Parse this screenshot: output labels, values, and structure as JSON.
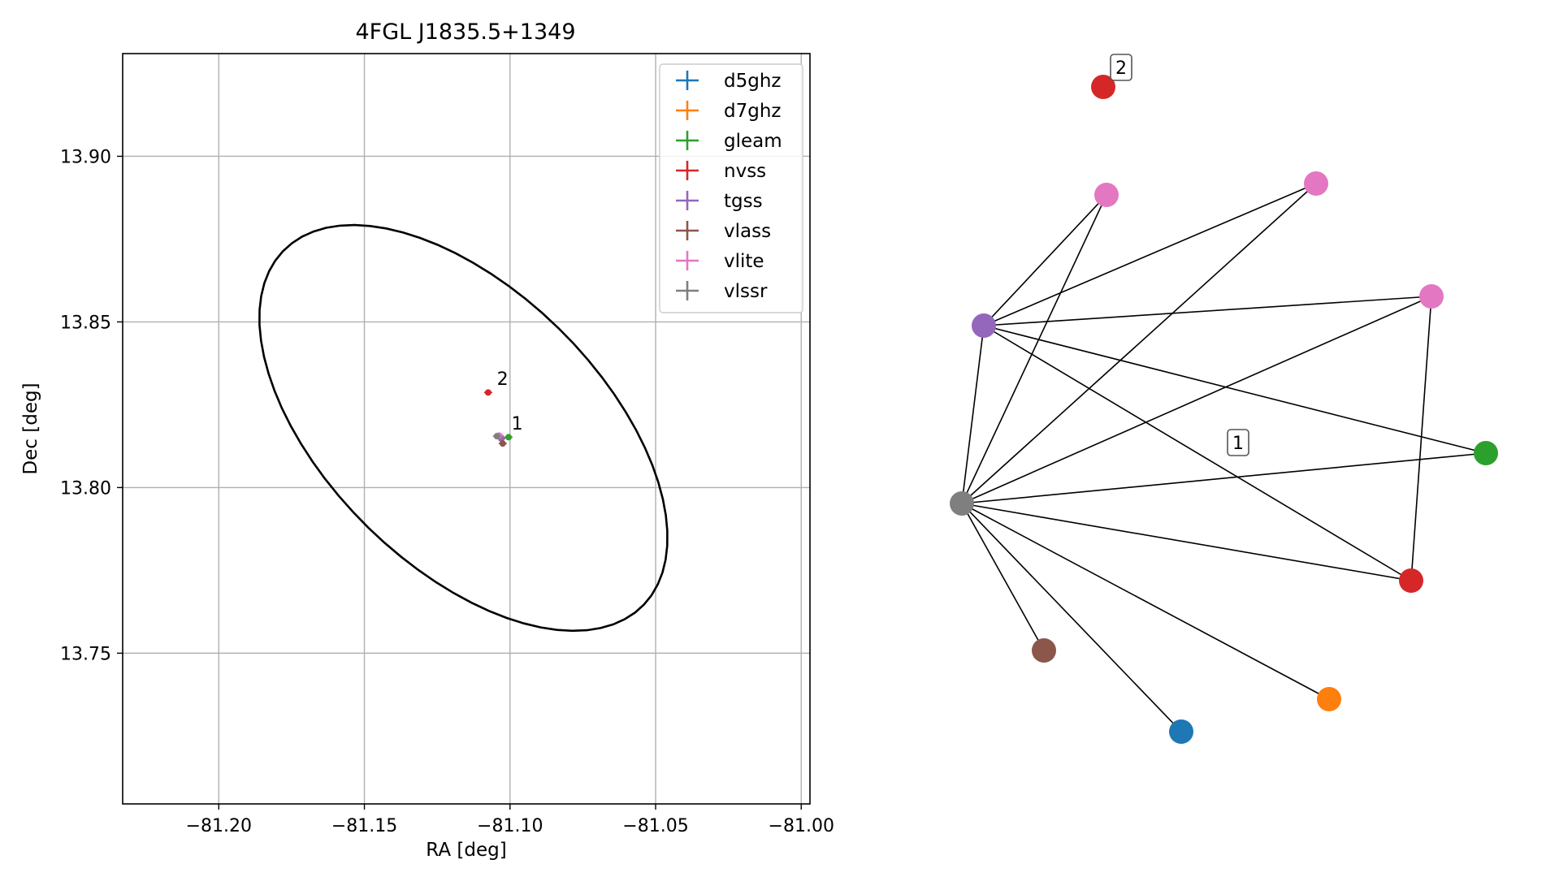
{
  "chart_data": [
    {
      "type": "scatter",
      "title": "4FGL J1835.5+1349",
      "xlabel": "RA [deg]",
      "ylabel": "Dec [deg]",
      "xlim": [
        -81.233,
        -80.997
      ],
      "ylim": [
        13.7045,
        13.931
      ],
      "xticks": [
        -81.2,
        -81.15,
        -81.1,
        -81.05,
        -81.0
      ],
      "xtick_labels": [
        "−81.20",
        "−81.15",
        "−81.10",
        "−81.05",
        "−81.00"
      ],
      "yticks": [
        13.75,
        13.8,
        13.85,
        13.9
      ],
      "ytick_labels": [
        "13.75",
        "13.80",
        "13.85",
        "13.90"
      ],
      "grid": true,
      "legend_position": "top-right",
      "ellipse": {
        "center": [
          -81.116,
          13.818
        ],
        "semi_major": 0.082,
        "semi_minor": 0.044,
        "angle_deg": -38,
        "color": "#000000"
      },
      "series": [
        {
          "name": "d5ghz",
          "color": "#1f77b4",
          "points": [
            [
              -81.1035,
              13.8155
            ]
          ]
        },
        {
          "name": "d7ghz",
          "color": "#ff7f0e",
          "points": [
            [
              -81.1035,
              13.8155
            ]
          ]
        },
        {
          "name": "gleam",
          "color": "#2ca02c",
          "points": [
            [
              -81.1005,
              13.8152
            ]
          ]
        },
        {
          "name": "nvss",
          "color": "#d62728",
          "points": [
            [
              -81.1075,
              13.8287
            ],
            [
              -81.103,
              13.8148
            ]
          ]
        },
        {
          "name": "tgss",
          "color": "#9467bd",
          "points": [
            [
              -81.103,
              13.815
            ]
          ]
        },
        {
          "name": "vlass",
          "color": "#8c564b",
          "points": [
            [
              -81.1025,
              13.8133
            ]
          ]
        },
        {
          "name": "vlite",
          "color": "#e377c2",
          "points": [
            [
              -81.1038,
              13.8157
            ]
          ]
        },
        {
          "name": "vlssr",
          "color": "#7f7f7f",
          "points": [
            [
              -81.1045,
              13.8155
            ]
          ]
        }
      ],
      "annotations": [
        {
          "text": "1",
          "x": -81.0995,
          "y": 13.8175
        },
        {
          "text": "2",
          "x": -81.1045,
          "y": 13.831
        }
      ]
    },
    {
      "type": "network",
      "nodes": [
        {
          "id": "n_red_top",
          "color": "#d62728"
        },
        {
          "id": "n_pink_1",
          "color": "#e377c2"
        },
        {
          "id": "n_pink_2",
          "color": "#e377c2"
        },
        {
          "id": "n_pink_3",
          "color": "#e377c2"
        },
        {
          "id": "n_purple",
          "color": "#9467bd"
        },
        {
          "id": "n_green",
          "color": "#2ca02c"
        },
        {
          "id": "n_gray",
          "color": "#7f7f7f"
        },
        {
          "id": "n_red",
          "color": "#d62728"
        },
        {
          "id": "n_brown",
          "color": "#8c564b"
        },
        {
          "id": "n_orange",
          "color": "#ff7f0e"
        },
        {
          "id": "n_blue",
          "color": "#1f77b4"
        }
      ],
      "edges": [
        [
          "n_purple",
          "n_pink_1"
        ],
        [
          "n_purple",
          "n_pink_2"
        ],
        [
          "n_purple",
          "n_pink_3"
        ],
        [
          "n_purple",
          "n_green"
        ],
        [
          "n_purple",
          "n_red"
        ],
        [
          "n_purple",
          "n_gray"
        ],
        [
          "n_gray",
          "n_pink_1"
        ],
        [
          "n_gray",
          "n_pink_2"
        ],
        [
          "n_gray",
          "n_pink_3"
        ],
        [
          "n_gray",
          "n_green"
        ],
        [
          "n_gray",
          "n_red"
        ],
        [
          "n_gray",
          "n_brown"
        ],
        [
          "n_gray",
          "n_orange"
        ],
        [
          "n_gray",
          "n_blue"
        ],
        [
          "n_pink_3",
          "n_red"
        ]
      ],
      "labels": [
        {
          "text": "2",
          "near": "n_red_top"
        },
        {
          "text": "1",
          "near": "component_1"
        }
      ]
    }
  ]
}
